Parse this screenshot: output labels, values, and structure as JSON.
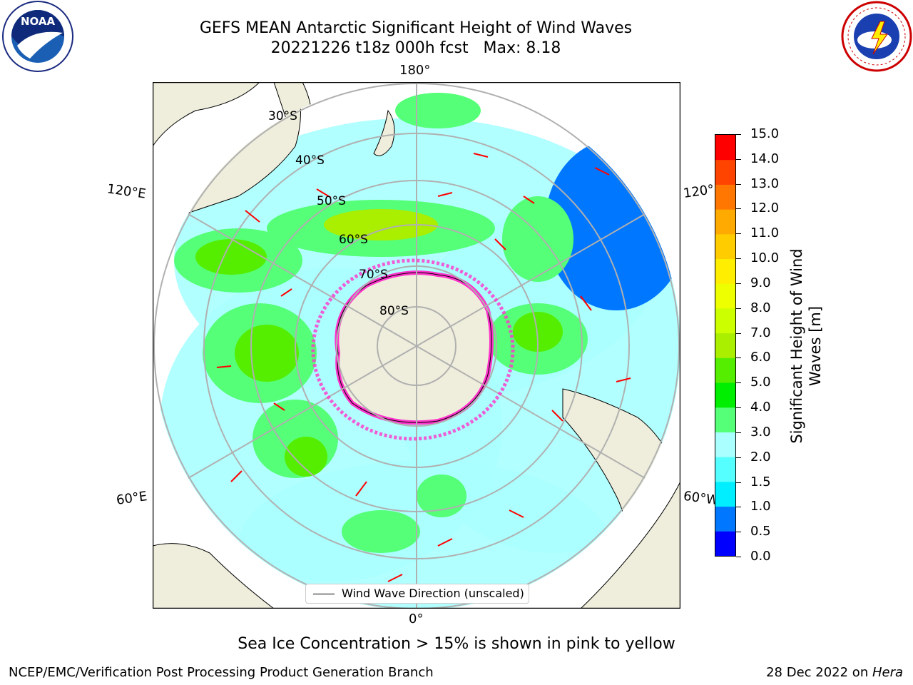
{
  "header": {
    "title_line1": "GEFS MEAN Antarctic Significant Height of Wind Waves",
    "title_line2": "20221226 t18z 000h fcst   Max: 8.18"
  },
  "logos": {
    "left": {
      "icon": "noaa-logo-icon",
      "text": "NOAA"
    },
    "right": {
      "icon": "national-weather-service-logo-icon"
    }
  },
  "map": {
    "projection": "south-polar-stereographic",
    "lon_labels": [
      "180°",
      "120°E",
      "120°",
      "60°E",
      "60°W",
      "0°"
    ],
    "lat_labels": [
      "30°S",
      "40°S",
      "50°S",
      "60°S",
      "70°S",
      "80°S"
    ],
    "land_color": "#efeedc",
    "ocean_background": "#ffffff",
    "grid_color": "#b0b0b0",
    "arrow_color": "#ff0000",
    "sea_ice_colors": [
      "#ff33cc",
      "#ffff55"
    ],
    "legend_label": "Wind Wave Direction (unscaled)"
  },
  "colorbar": {
    "title": "Significant Height of Wind Waves [m]",
    "levels": [
      "0.0",
      "0.5",
      "1.0",
      "1.5",
      "2.0",
      "3.0",
      "4.0",
      "5.0",
      "6.0",
      "7.0",
      "8.0",
      "9.0",
      "10.0",
      "11.0",
      "12.0",
      "13.0",
      "14.0",
      "15.0"
    ],
    "colors": [
      "#0000ff",
      "#0077ff",
      "#00eeff",
      "#55ffff",
      "#aaffff",
      "#55ff77",
      "#00ee00",
      "#55ee00",
      "#aaee00",
      "#ccff00",
      "#eeff00",
      "#ffee00",
      "#ffcc00",
      "#ffaa00",
      "#ff7700",
      "#ff4400",
      "#ff0000"
    ]
  },
  "subtitle": "Sea Ice Concentration > 15% is shown in pink to yellow",
  "footer": {
    "left": "NCEP/EMC/Verification Post Processing Product Generation Branch",
    "right_prefix": "28 Dec 2022 on ",
    "right_italic": "Hera"
  }
}
